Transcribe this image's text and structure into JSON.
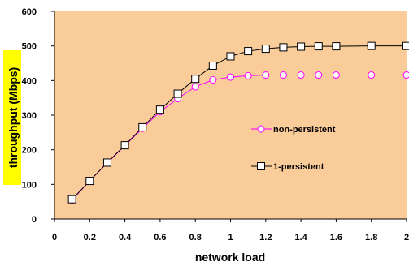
{
  "chart_data": {
    "type": "line",
    "title": "",
    "xlabel": "network load",
    "ylabel": "throughput (Mbps)",
    "xlim": [
      0,
      2
    ],
    "ylim": [
      0,
      600
    ],
    "xticks": [
      0,
      0.2,
      0.4,
      0.6,
      0.8,
      1,
      1.2,
      1.4,
      1.6,
      1.8,
      2
    ],
    "xtick_labels": [
      "0",
      "0.2",
      "0.4",
      "0.6",
      "0.8",
      "1",
      "1.2",
      "1.4",
      "1.6",
      "1.8",
      "2"
    ],
    "yticks": [
      0,
      100,
      200,
      300,
      400,
      500,
      600
    ],
    "ytick_labels": [
      "0",
      "100",
      "200",
      "300",
      "400",
      "500",
      "600"
    ],
    "grid": false,
    "legend_position": "right-middle",
    "plot_background": "#F9CC99",
    "ylabel_highlight": "#FFFF00",
    "series": [
      {
        "name": "non-persistent",
        "color": "#FF00FF",
        "marker": "circle",
        "x": [
          0.1,
          0.2,
          0.3,
          0.4,
          0.5,
          0.6,
          0.7,
          0.8,
          0.9,
          1.0,
          1.1,
          1.2,
          1.3,
          1.4,
          1.5,
          1.6,
          1.8,
          2.0
        ],
        "y": [
          55,
          110,
          162,
          212,
          262,
          310,
          348,
          382,
          402,
          410,
          414,
          416,
          416,
          416,
          416,
          416,
          416,
          416
        ]
      },
      {
        "name": "1-persistent",
        "color": "#000000",
        "marker": "square",
        "x": [
          0.1,
          0.2,
          0.3,
          0.4,
          0.5,
          0.6,
          0.7,
          0.8,
          0.9,
          1.0,
          1.1,
          1.2,
          1.3,
          1.4,
          1.5,
          1.6,
          1.8,
          2.0
        ],
        "y": [
          57,
          110,
          163,
          213,
          265,
          316,
          362,
          405,
          443,
          470,
          485,
          492,
          496,
          498,
          499,
          499,
          500,
          500
        ]
      }
    ]
  }
}
